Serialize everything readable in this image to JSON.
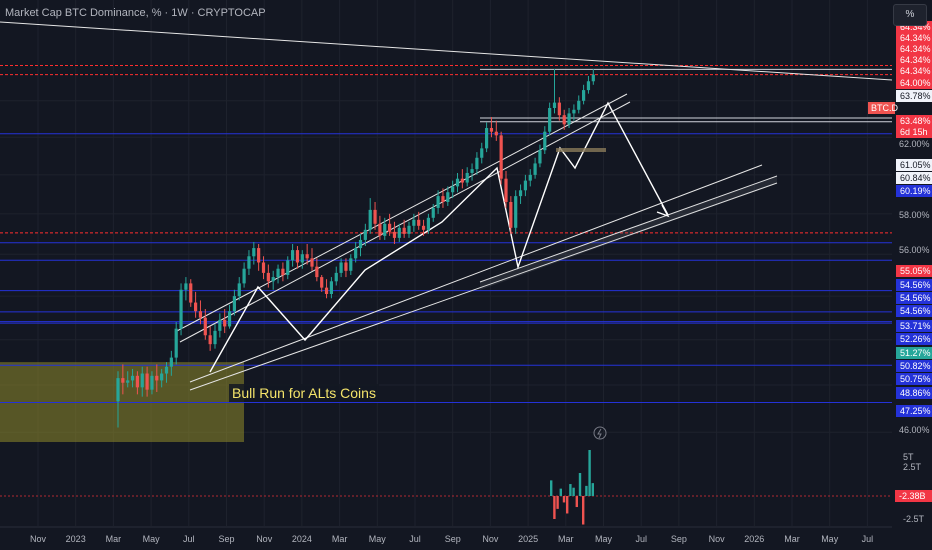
{
  "title": "Market Cap BTC Dominance, % · 1W · CRYPTOCAP",
  "scale_button": "%",
  "annotation": "Bull Run for ALts Coins",
  "colors": {
    "background": "#131722",
    "grid": "#1e222d",
    "up": "#26a69a",
    "down": "#ef5350",
    "red_level": "#ff2e2e",
    "blue_level": "#2432d8",
    "yellow_zone": "#8f8a2a",
    "channel": "#e6e6e6"
  },
  "chart_data": {
    "type": "candlestick",
    "title": "Market Cap BTC Dominance, % · 1W · CRYPTOCAP",
    "y_scale": "log",
    "ylim": [
      45.6,
      66.2
    ],
    "x_tick_labels": [
      "Nov",
      "2023",
      "Mar",
      "May",
      "Jul",
      "Sep",
      "Nov",
      "2024",
      "Mar",
      "May",
      "Jul",
      "Sep",
      "Nov",
      "2025",
      "Mar",
      "May",
      "Jul",
      "Sep",
      "Nov",
      "2026",
      "Mar",
      "May",
      "Jul"
    ],
    "y_tick_labels": [
      "62.00%",
      "58.00%",
      "56.00%",
      "46.00%"
    ],
    "price_labels": [
      {
        "text": "64.34%",
        "kind": "red",
        "value": 64.34
      },
      {
        "text": "64.34%",
        "kind": "red",
        "value": 64.34
      },
      {
        "text": "64.34%",
        "kind": "red",
        "value": 64.34
      },
      {
        "text": "64.34%",
        "kind": "red",
        "value": 64.34
      },
      {
        "text": "64.34%",
        "kind": "red",
        "value": 64.34
      },
      {
        "text": "64.00%",
        "kind": "red",
        "value": 64.0
      },
      {
        "text": "63.78%",
        "kind": "white",
        "value": 63.78
      },
      {
        "text": "BTC.D",
        "kind": "symbol",
        "value": 63.48
      },
      {
        "text": "63.48%",
        "kind": "red",
        "value": 63.48
      },
      {
        "text": "6d 15h",
        "kind": "red",
        "value": 63.2
      },
      {
        "text": "61.05%",
        "kind": "white",
        "value": 61.05
      },
      {
        "text": "60.84%",
        "kind": "white",
        "value": 60.84
      },
      {
        "text": "60.19%",
        "kind": "blue",
        "value": 60.19
      },
      {
        "text": "55.05%",
        "kind": "red",
        "value": 55.05
      },
      {
        "text": "54.56%",
        "kind": "blue",
        "value": 54.56
      },
      {
        "text": "54.56%",
        "kind": "blue",
        "value": 54.56
      },
      {
        "text": "54.56%",
        "kind": "blue",
        "value": 54.56
      },
      {
        "text": "53.71%",
        "kind": "blue",
        "value": 53.71
      },
      {
        "text": "52.26%",
        "kind": "blue",
        "value": 52.26
      },
      {
        "text": "51.27%",
        "kind": "green",
        "value": 51.27
      },
      {
        "text": "50.82%",
        "kind": "blue",
        "value": 50.82
      },
      {
        "text": "50.75%",
        "kind": "blue",
        "value": 50.75
      },
      {
        "text": "48.86%",
        "kind": "blue",
        "value": 48.86
      },
      {
        "text": "47.25%",
        "kind": "blue",
        "value": 47.25
      }
    ],
    "candles": [
      {
        "o": 47.3,
        "h": 48.6,
        "l": 46.2,
        "c": 48.3
      },
      {
        "o": 48.3,
        "h": 48.9,
        "l": 47.6,
        "c": 48.1
      },
      {
        "o": 48.1,
        "h": 48.6,
        "l": 47.9,
        "c": 48.2
      },
      {
        "o": 48.2,
        "h": 48.7,
        "l": 47.9,
        "c": 48.4
      },
      {
        "o": 48.4,
        "h": 48.6,
        "l": 47.6,
        "c": 47.9
      },
      {
        "o": 47.9,
        "h": 48.8,
        "l": 47.5,
        "c": 48.5
      },
      {
        "o": 48.5,
        "h": 48.8,
        "l": 47.5,
        "c": 47.8
      },
      {
        "o": 47.8,
        "h": 48.6,
        "l": 47.6,
        "c": 48.4
      },
      {
        "o": 48.4,
        "h": 48.9,
        "l": 47.7,
        "c": 48.2
      },
      {
        "o": 48.2,
        "h": 48.7,
        "l": 47.9,
        "c": 48.5
      },
      {
        "o": 48.5,
        "h": 49.0,
        "l": 48.1,
        "c": 48.8
      },
      {
        "o": 48.8,
        "h": 49.5,
        "l": 48.4,
        "c": 49.2
      },
      {
        "o": 49.2,
        "h": 50.8,
        "l": 48.9,
        "c": 50.5
      },
      {
        "o": 50.5,
        "h": 52.6,
        "l": 50.2,
        "c": 52.3
      },
      {
        "o": 52.3,
        "h": 52.9,
        "l": 51.8,
        "c": 52.6
      },
      {
        "o": 52.6,
        "h": 52.8,
        "l": 51.5,
        "c": 51.7
      },
      {
        "o": 51.7,
        "h": 52.2,
        "l": 51.0,
        "c": 51.3
      },
      {
        "o": 51.3,
        "h": 51.8,
        "l": 50.7,
        "c": 51.0
      },
      {
        "o": 51.0,
        "h": 51.4,
        "l": 50.0,
        "c": 50.2
      },
      {
        "o": 50.2,
        "h": 50.6,
        "l": 49.5,
        "c": 49.8
      },
      {
        "o": 49.8,
        "h": 50.7,
        "l": 49.6,
        "c": 50.4
      },
      {
        "o": 50.4,
        "h": 51.2,
        "l": 50.1,
        "c": 50.9
      },
      {
        "o": 50.9,
        "h": 51.4,
        "l": 50.3,
        "c": 50.6
      },
      {
        "o": 50.6,
        "h": 51.6,
        "l": 50.5,
        "c": 51.3
      },
      {
        "o": 51.3,
        "h": 52.3,
        "l": 51.1,
        "c": 52.0
      },
      {
        "o": 52.0,
        "h": 52.9,
        "l": 51.8,
        "c": 52.6
      },
      {
        "o": 52.6,
        "h": 53.6,
        "l": 52.4,
        "c": 53.3
      },
      {
        "o": 53.3,
        "h": 54.2,
        "l": 53.0,
        "c": 53.9
      },
      {
        "o": 53.9,
        "h": 54.6,
        "l": 53.5,
        "c": 54.3
      },
      {
        "o": 54.3,
        "h": 54.5,
        "l": 53.2,
        "c": 53.6
      },
      {
        "o": 53.6,
        "h": 53.9,
        "l": 52.8,
        "c": 53.1
      },
      {
        "o": 53.1,
        "h": 53.5,
        "l": 52.4,
        "c": 52.7
      },
      {
        "o": 52.7,
        "h": 53.2,
        "l": 52.3,
        "c": 52.9
      },
      {
        "o": 52.9,
        "h": 53.5,
        "l": 52.6,
        "c": 53.3
      },
      {
        "o": 53.3,
        "h": 53.6,
        "l": 52.7,
        "c": 53.0
      },
      {
        "o": 53.0,
        "h": 53.9,
        "l": 52.8,
        "c": 53.7
      },
      {
        "o": 53.7,
        "h": 54.5,
        "l": 53.4,
        "c": 54.2
      },
      {
        "o": 54.2,
        "h": 54.4,
        "l": 53.3,
        "c": 53.6
      },
      {
        "o": 53.6,
        "h": 54.2,
        "l": 53.3,
        "c": 54.0
      },
      {
        "o": 54.0,
        "h": 54.5,
        "l": 53.5,
        "c": 53.8
      },
      {
        "o": 53.8,
        "h": 54.3,
        "l": 53.2,
        "c": 53.4
      },
      {
        "o": 53.4,
        "h": 53.8,
        "l": 52.7,
        "c": 52.9
      },
      {
        "o": 52.9,
        "h": 53.0,
        "l": 52.2,
        "c": 52.4
      },
      {
        "o": 52.4,
        "h": 52.8,
        "l": 51.9,
        "c": 52.1
      },
      {
        "o": 52.1,
        "h": 52.9,
        "l": 51.9,
        "c": 52.7
      },
      {
        "o": 52.7,
        "h": 53.4,
        "l": 52.5,
        "c": 53.1
      },
      {
        "o": 53.1,
        "h": 53.8,
        "l": 52.9,
        "c": 53.6
      },
      {
        "o": 53.6,
        "h": 53.8,
        "l": 52.9,
        "c": 53.2
      },
      {
        "o": 53.2,
        "h": 54.0,
        "l": 53.0,
        "c": 53.8
      },
      {
        "o": 53.8,
        "h": 54.6,
        "l": 53.6,
        "c": 54.3
      },
      {
        "o": 54.3,
        "h": 55.0,
        "l": 53.9,
        "c": 54.7
      },
      {
        "o": 54.7,
        "h": 55.5,
        "l": 54.4,
        "c": 55.2
      },
      {
        "o": 55.2,
        "h": 56.8,
        "l": 55.0,
        "c": 56.2
      },
      {
        "o": 56.2,
        "h": 56.6,
        "l": 55.2,
        "c": 55.5
      },
      {
        "o": 55.5,
        "h": 55.9,
        "l": 54.7,
        "c": 54.9
      },
      {
        "o": 54.9,
        "h": 55.8,
        "l": 54.7,
        "c": 55.5
      },
      {
        "o": 55.5,
        "h": 56.0,
        "l": 54.9,
        "c": 55.1
      },
      {
        "o": 55.1,
        "h": 55.6,
        "l": 54.5,
        "c": 54.8
      },
      {
        "o": 54.8,
        "h": 55.5,
        "l": 54.6,
        "c": 55.3
      },
      {
        "o": 55.3,
        "h": 55.7,
        "l": 54.8,
        "c": 55.0
      },
      {
        "o": 55.0,
        "h": 55.6,
        "l": 54.8,
        "c": 55.4
      },
      {
        "o": 55.4,
        "h": 56.0,
        "l": 55.1,
        "c": 55.7
      },
      {
        "o": 55.7,
        "h": 56.1,
        "l": 55.2,
        "c": 55.4
      },
      {
        "o": 55.4,
        "h": 55.7,
        "l": 54.9,
        "c": 55.2
      },
      {
        "o": 55.2,
        "h": 56.0,
        "l": 55.0,
        "c": 55.8
      },
      {
        "o": 55.8,
        "h": 56.5,
        "l": 55.6,
        "c": 56.3
      },
      {
        "o": 56.3,
        "h": 57.2,
        "l": 56.0,
        "c": 56.9
      },
      {
        "o": 56.9,
        "h": 57.3,
        "l": 56.3,
        "c": 56.6
      },
      {
        "o": 56.6,
        "h": 57.4,
        "l": 56.4,
        "c": 57.1
      },
      {
        "o": 57.1,
        "h": 57.7,
        "l": 56.8,
        "c": 57.4
      },
      {
        "o": 57.4,
        "h": 58.1,
        "l": 57.1,
        "c": 57.8
      },
      {
        "o": 57.8,
        "h": 58.3,
        "l": 57.3,
        "c": 57.6
      },
      {
        "o": 57.6,
        "h": 58.4,
        "l": 57.4,
        "c": 58.1
      },
      {
        "o": 58.1,
        "h": 58.6,
        "l": 57.7,
        "c": 58.3
      },
      {
        "o": 58.3,
        "h": 59.2,
        "l": 58.0,
        "c": 58.9
      },
      {
        "o": 58.9,
        "h": 59.7,
        "l": 58.6,
        "c": 59.4
      },
      {
        "o": 59.4,
        "h": 60.8,
        "l": 59.2,
        "c": 60.5
      },
      {
        "o": 60.5,
        "h": 61.1,
        "l": 60.0,
        "c": 60.3
      },
      {
        "o": 60.3,
        "h": 60.9,
        "l": 59.8,
        "c": 60.1
      },
      {
        "o": 60.1,
        "h": 60.3,
        "l": 57.5,
        "c": 57.8
      },
      {
        "o": 57.8,
        "h": 58.2,
        "l": 56.3,
        "c": 56.6
      },
      {
        "o": 56.6,
        "h": 56.9,
        "l": 55.0,
        "c": 55.3
      },
      {
        "o": 55.3,
        "h": 57.2,
        "l": 55.0,
        "c": 56.9
      },
      {
        "o": 56.9,
        "h": 57.5,
        "l": 56.5,
        "c": 57.2
      },
      {
        "o": 57.2,
        "h": 58.0,
        "l": 56.9,
        "c": 57.7
      },
      {
        "o": 57.7,
        "h": 58.3,
        "l": 57.4,
        "c": 58.0
      },
      {
        "o": 58.0,
        "h": 58.9,
        "l": 57.8,
        "c": 58.6
      },
      {
        "o": 58.6,
        "h": 59.6,
        "l": 58.4,
        "c": 59.3
      },
      {
        "o": 59.3,
        "h": 60.6,
        "l": 59.1,
        "c": 60.3
      },
      {
        "o": 60.3,
        "h": 61.9,
        "l": 60.1,
        "c": 61.6
      },
      {
        "o": 61.6,
        "h": 63.8,
        "l": 61.3,
        "c": 61.9
      },
      {
        "o": 61.9,
        "h": 62.2,
        "l": 60.9,
        "c": 61.2
      },
      {
        "o": 61.2,
        "h": 61.5,
        "l": 60.4,
        "c": 60.7
      },
      {
        "o": 60.7,
        "h": 61.6,
        "l": 60.5,
        "c": 61.3
      },
      {
        "o": 61.3,
        "h": 61.8,
        "l": 60.9,
        "c": 61.5
      },
      {
        "o": 61.5,
        "h": 62.3,
        "l": 61.3,
        "c": 62.0
      },
      {
        "o": 62.0,
        "h": 62.9,
        "l": 61.8,
        "c": 62.6
      },
      {
        "o": 62.6,
        "h": 63.4,
        "l": 62.4,
        "c": 63.1
      },
      {
        "o": 63.1,
        "h": 63.8,
        "l": 62.9,
        "c": 63.48
      }
    ],
    "indicator": {
      "y_tick_labels": [
        "5T",
        "2.5T",
        "-2.5T"
      ],
      "value_label": "-2.38B",
      "bars": [
        1.7,
        -2.5,
        -1.4,
        0.8,
        -0.7,
        -1.9,
        1.3,
        0.9,
        -1.2,
        2.5,
        -3.1,
        1.1,
        5.0,
        1.4
      ]
    }
  }
}
